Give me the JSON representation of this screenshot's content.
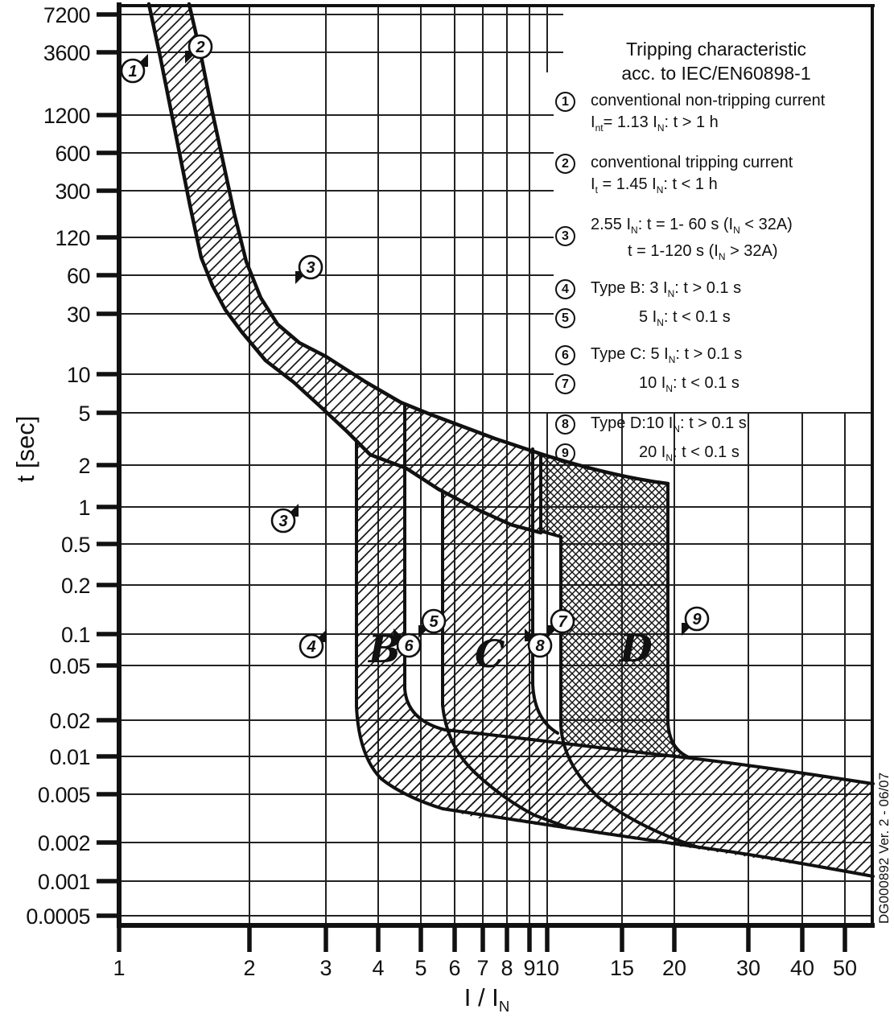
{
  "title_block": {
    "line1": "Tripping characteristic",
    "line2": "acc. to IEC/EN60898-1"
  },
  "legend": {
    "rows": [
      {
        "num": "1",
        "text": "conventional non-tripping current"
      },
      {
        "text": "I~nt~= 1.13 I~N~: t > 1 h"
      },
      {
        "num": "2",
        "text": "conventional tripping current"
      },
      {
        "text": "I~t~ = 1.45 I~N~: t < 1 h"
      },
      {
        "num": "3",
        "text": "2.55 I~N~: t = 1- 60 s (I~N~ < 32A)"
      },
      {
        "text": "t = 1-120 s (I~N~ > 32A)"
      },
      {
        "num": "4",
        "text": "Type B: 3 I~N~: t > 0.1 s"
      },
      {
        "num": "5",
        "text": "5 I~N~: t < 0.1 s"
      },
      {
        "num": "6",
        "text": "Type C: 5 I~N~: t > 0.1 s"
      },
      {
        "num": "7",
        "text": "10 I~N~: t < 0.1 s"
      },
      {
        "num": "8",
        "text": "Type D:10 I~N~: t > 0.1 s"
      },
      {
        "num": "9",
        "text": "20 I~N~: t < 0.1 s"
      }
    ]
  },
  "axes": {
    "y": {
      "label": "t [sec]",
      "ticks": [
        "7200",
        "3600",
        "1200",
        "600",
        "300",
        "120",
        "60",
        "30",
        "10",
        "5",
        "2",
        "1",
        "0.5",
        "0.2",
        "0.1",
        "0.05",
        "0.02",
        "0.01",
        "0.005",
        "0.002",
        "0.001",
        "0.0005"
      ]
    },
    "x": {
      "label": "I / I~N~",
      "ticks": [
        "1",
        "2",
        "3",
        "4",
        "5",
        "6",
        "7",
        "8",
        "9",
        "10",
        "15",
        "20",
        "30",
        "40",
        "50"
      ]
    }
  },
  "band_letters": {
    "b": "B",
    "c": "C",
    "d": "D"
  },
  "markers": [
    {
      "label": "1"
    },
    {
      "label": "2"
    },
    {
      "label": "3"
    },
    {
      "label": "3"
    },
    {
      "label": "4"
    },
    {
      "label": "5"
    },
    {
      "label": "6"
    },
    {
      "label": "7"
    },
    {
      "label": "8"
    },
    {
      "label": "9"
    }
  ],
  "watermark": "DG000892 Ver. 2 - 06/07",
  "chart_data": {
    "type": "line",
    "title": "Tripping characteristic acc. to IEC/EN60898-1",
    "xlabel": "I / IN",
    "ylabel": "t [sec]",
    "x_scale": "log",
    "y_scale": "log",
    "xlim": [
      1,
      57
    ],
    "ylim": [
      0.0003,
      9000
    ],
    "x_ticks": [
      1,
      2,
      3,
      4,
      5,
      6,
      7,
      8,
      9,
      10,
      15,
      20,
      30,
      40,
      50
    ],
    "y_ticks": [
      7200,
      3600,
      1200,
      600,
      300,
      120,
      60,
      30,
      10,
      5,
      2,
      1,
      0.5,
      0.2,
      0.1,
      0.05,
      0.02,
      0.01,
      0.005,
      0.002,
      0.001,
      0.0005
    ],
    "grid": true,
    "legend_position": "top-right",
    "series": [
      {
        "name": "upper tripping limit curve (1.45 IN, curve 2)",
        "points": [
          [
            1.45,
            9000
          ],
          [
            1.65,
            700
          ],
          [
            1.9,
            120
          ],
          [
            2.2,
            50
          ],
          [
            2.8,
            24
          ],
          [
            3.6,
            13
          ],
          [
            4.6,
            6.6
          ],
          [
            5.4,
            4.5
          ],
          [
            6.6,
            3.5
          ],
          [
            8.6,
            2.8
          ],
          [
            9.7,
            2.6
          ],
          [
            19,
            1.55
          ]
        ]
      },
      {
        "name": "lower non-tripping limit curve (1.13 IN, curve 1)",
        "points": [
          [
            1.17,
            9000
          ],
          [
            1.35,
            1400
          ],
          [
            1.6,
            120
          ],
          [
            1.9,
            24
          ],
          [
            2.3,
            11
          ],
          [
            3.0,
            6.0
          ],
          [
            3.6,
            3.3
          ],
          [
            4.7,
            2.0
          ],
          [
            5.6,
            1.4
          ],
          [
            6.9,
            0.94
          ],
          [
            8.2,
            0.72
          ],
          [
            9.7,
            0.63
          ]
        ]
      },
      {
        "name": "instantaneous region upper boundary",
        "points": [
          [
            4.7,
            0.034
          ],
          [
            5.8,
            0.018
          ],
          [
            10.9,
            0.0143
          ],
          [
            19.1,
            0.0113
          ],
          [
            32,
            0.0085
          ],
          [
            57,
            0.0067
          ]
        ]
      },
      {
        "name": "instantaneous region lower boundary",
        "points": [
          [
            5.6,
            0.0043
          ],
          [
            10.9,
            0.0031
          ],
          [
            26,
            0.002
          ],
          [
            40,
            0.0016
          ],
          [
            57,
            0.0012
          ]
        ]
      }
    ],
    "bands": [
      {
        "type": "B",
        "range_multiple": [
          3,
          5
        ],
        "condition": "3 IN: t > 0.1 s; 5 IN: t < 0.1 s",
        "hatch": "single"
      },
      {
        "type": "C",
        "range_multiple": [
          5,
          10
        ],
        "condition": "5 IN: t > 0.1 s; 10 IN: t < 0.1 s",
        "hatch": "single"
      },
      {
        "type": "D",
        "range_multiple": [
          10,
          20
        ],
        "condition": "10 IN: t > 0.1 s; 20 IN: t < 0.1 s",
        "hatch": "cross"
      }
    ],
    "reference_points": {
      "1_non_tripping": "Int = 1.13 IN: t > 1 h",
      "2_tripping": "It = 1.45 IN: t < 1 h",
      "3_test": "2.55 IN: t = 1-60 s (IN < 32A), t = 1-120 s (IN > 32A)"
    }
  }
}
